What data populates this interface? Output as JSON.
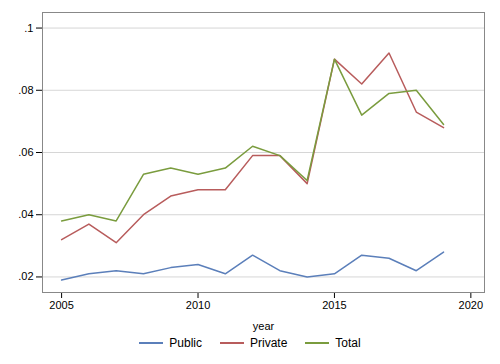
{
  "chart_data": {
    "type": "line",
    "x": [
      2005,
      2006,
      2007,
      2008,
      2009,
      2010,
      2011,
      2012,
      2013,
      2014,
      2015,
      2016,
      2017,
      2018,
      2019
    ],
    "series": [
      {
        "name": "Public",
        "color": "#5b7fba",
        "values": [
          0.019,
          0.021,
          0.022,
          0.021,
          0.023,
          0.024,
          0.021,
          0.027,
          0.022,
          0.02,
          0.021,
          0.027,
          0.026,
          0.022,
          0.028
        ]
      },
      {
        "name": "Private",
        "color": "#b85c5c",
        "values": [
          0.032,
          0.037,
          0.031,
          0.04,
          0.046,
          0.048,
          0.048,
          0.059,
          0.059,
          0.05,
          0.09,
          0.082,
          0.092,
          0.073,
          0.068
        ]
      },
      {
        "name": "Total",
        "color": "#7a9c3e",
        "values": [
          0.038,
          0.04,
          0.038,
          0.053,
          0.055,
          0.053,
          0.055,
          0.062,
          0.059,
          0.051,
          0.09,
          0.072,
          0.079,
          0.08,
          0.069
        ]
      }
    ],
    "xlabel": "year",
    "xlim": [
      2004.3,
      2020.5
    ],
    "xticks": [
      2005,
      2010,
      2015,
      2020
    ],
    "ylim": [
      0.015,
      0.105
    ],
    "yticks": [
      {
        "value": 0.02,
        "label": ".02"
      },
      {
        "value": 0.04,
        "label": ".04"
      },
      {
        "value": 0.06,
        "label": ".06"
      },
      {
        "value": 0.08,
        "label": ".08"
      },
      {
        "value": 0.1,
        "label": ".1"
      }
    ],
    "grid": true,
    "legend": "bottom"
  }
}
